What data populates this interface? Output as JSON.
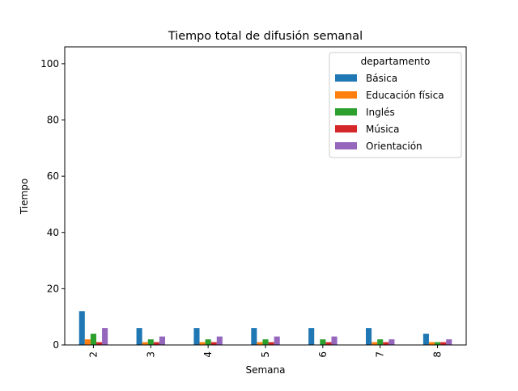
{
  "chart_data": {
    "type": "bar",
    "title": "Tiempo total de difusión semanal",
    "xlabel": "Semana",
    "ylabel": "Tiempo",
    "categories": [
      "2",
      "3",
      "4",
      "5",
      "6",
      "7",
      "8"
    ],
    "ylim": [
      0,
      106
    ],
    "yticks": [
      0,
      20,
      40,
      60,
      80,
      100
    ],
    "grid": false,
    "legend": {
      "title": "departamento",
      "placement": "top-right"
    },
    "series": [
      {
        "name": "Básica",
        "color": "#1f77b4",
        "values": [
          12,
          6,
          6,
          6,
          6,
          6,
          4
        ]
      },
      {
        "name": "Educación física",
        "color": "#ff7f0e",
        "values": [
          2,
          1,
          1,
          1,
          0,
          1,
          1
        ]
      },
      {
        "name": "Inglés",
        "color": "#2ca02c",
        "values": [
          4,
          2,
          2,
          2,
          2,
          2,
          1
        ]
      },
      {
        "name": "Música",
        "color": "#d62728",
        "values": [
          1,
          1,
          1,
          1,
          1,
          1,
          1
        ]
      },
      {
        "name": "Orientación",
        "color": "#9467bd",
        "values": [
          6,
          3,
          3,
          3,
          3,
          2,
          2
        ]
      }
    ]
  }
}
